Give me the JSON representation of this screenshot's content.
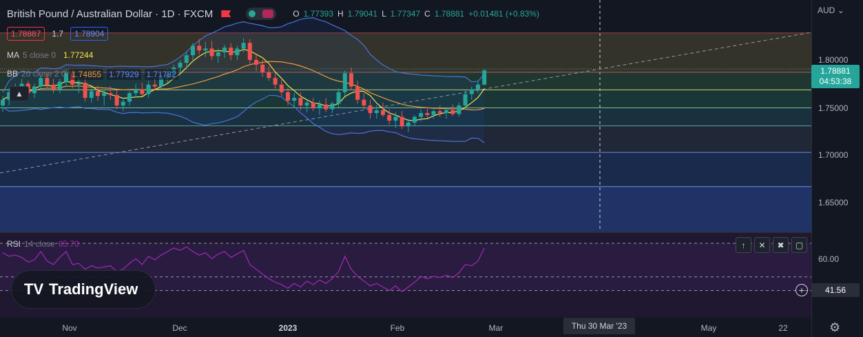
{
  "header": {
    "title": "British Pound / Australian Dollar · 1D · FXCM",
    "ohlc": {
      "o_label": "O",
      "o": "1.77393",
      "h_label": "H",
      "h": "1.79041",
      "l_label": "L",
      "l": "1.77347",
      "c_label": "C",
      "c": "1.78881",
      "change": "+0.01481 (+0.83%)"
    }
  },
  "trade": {
    "sell": "1.78887",
    "spread": "1.7",
    "buy": "1.78904"
  },
  "indicators": {
    "ma": {
      "name": "MA",
      "params": "5 close 0",
      "value": "1.77244"
    },
    "bb": {
      "name": "BB",
      "params": "20 close 2 0",
      "basis": "1.74855",
      "upper": "1.77929",
      "lower": "1.71782"
    },
    "rsi": {
      "name": "RSI",
      "params": "14 close",
      "value": "65.70"
    }
  },
  "price_axis": {
    "currency": "AUD",
    "ticks": [
      "1.80000",
      "1.75000",
      "1.70000",
      "1.65000"
    ],
    "last_price": "1.78881",
    "countdown": "04:53:38",
    "rsi_ticks": [
      "60.00"
    ],
    "rsi_marker": "41.56"
  },
  "time_axis": {
    "ticks": [
      "Nov",
      "Dec",
      "2023",
      "Feb",
      "Mar",
      "May",
      "22"
    ],
    "crosshair_label": "Thu 30 Mar '23"
  },
  "logo": {
    "text": "TradingView",
    "mark": "TV"
  },
  "colors": {
    "up": "#26a69a",
    "down": "#ef5350",
    "ma": "#f5e54a",
    "bb_basis": "#f29b38",
    "bb_band": "#4b74d8",
    "rsi": "#9c27b0"
  },
  "chart_data": {
    "type": "line",
    "title": "",
    "symbol": "GBPAUD",
    "interval": "1D",
    "ylim": [
      1.61,
      1.83
    ],
    "fib_levels": [
      1.8285,
      1.787,
      1.7685,
      1.7495,
      1.7305,
      1.7025,
      1.6665
    ],
    "candles": [
      [
        1.752,
        1.762,
        1.745,
        1.758
      ],
      [
        1.758,
        1.77,
        1.752,
        1.766
      ],
      [
        1.766,
        1.775,
        1.76,
        1.771
      ],
      [
        1.771,
        1.78,
        1.765,
        1.775
      ],
      [
        1.775,
        1.778,
        1.762,
        1.765
      ],
      [
        1.765,
        1.775,
        1.76,
        1.772
      ],
      [
        1.772,
        1.785,
        1.768,
        1.781
      ],
      [
        1.781,
        1.786,
        1.77,
        1.774
      ],
      [
        1.774,
        1.78,
        1.765,
        1.769
      ],
      [
        1.769,
        1.78,
        1.765,
        1.777
      ],
      [
        1.777,
        1.79,
        1.772,
        1.786
      ],
      [
        1.786,
        1.79,
        1.77,
        1.774
      ],
      [
        1.774,
        1.781,
        1.765,
        1.776
      ],
      [
        1.776,
        1.782,
        1.756,
        1.76
      ],
      [
        1.76,
        1.77,
        1.755,
        1.767
      ],
      [
        1.767,
        1.773,
        1.757,
        1.762
      ],
      [
        1.762,
        1.768,
        1.752,
        1.765
      ],
      [
        1.765,
        1.772,
        1.758,
        1.763
      ],
      [
        1.763,
        1.768,
        1.748,
        1.752
      ],
      [
        1.752,
        1.76,
        1.746,
        1.756
      ],
      [
        1.756,
        1.767,
        1.752,
        1.765
      ],
      [
        1.765,
        1.775,
        1.76,
        1.769
      ],
      [
        1.769,
        1.776,
        1.762,
        1.764
      ],
      [
        1.764,
        1.778,
        1.76,
        1.774
      ],
      [
        1.774,
        1.781,
        1.768,
        1.772
      ],
      [
        1.772,
        1.784,
        1.768,
        1.781
      ],
      [
        1.781,
        1.79,
        1.776,
        1.785
      ],
      [
        1.785,
        1.795,
        1.78,
        1.792
      ],
      [
        1.792,
        1.8,
        1.786,
        1.797
      ],
      [
        1.797,
        1.808,
        1.79,
        1.805
      ],
      [
        1.805,
        1.818,
        1.8,
        1.815
      ],
      [
        1.815,
        1.822,
        1.806,
        1.81
      ],
      [
        1.81,
        1.819,
        1.803,
        1.812
      ],
      [
        1.812,
        1.82,
        1.8,
        1.804
      ],
      [
        1.804,
        1.812,
        1.797,
        1.808
      ],
      [
        1.808,
        1.816,
        1.802,
        1.813
      ],
      [
        1.813,
        1.818,
        1.8,
        1.805
      ],
      [
        1.805,
        1.815,
        1.8,
        1.812
      ],
      [
        1.812,
        1.823,
        1.808,
        1.818
      ],
      [
        1.818,
        1.822,
        1.796,
        1.8
      ],
      [
        1.8,
        1.806,
        1.788,
        1.795
      ],
      [
        1.795,
        1.8,
        1.782,
        1.787
      ],
      [
        1.787,
        1.793,
        1.778,
        1.781
      ],
      [
        1.781,
        1.787,
        1.77,
        1.774
      ],
      [
        1.774,
        1.779,
        1.762,
        1.766
      ],
      [
        1.766,
        1.771,
        1.752,
        1.757
      ],
      [
        1.757,
        1.765,
        1.75,
        1.76
      ],
      [
        1.76,
        1.766,
        1.747,
        1.752
      ],
      [
        1.752,
        1.758,
        1.745,
        1.755
      ],
      [
        1.755,
        1.76,
        1.746,
        1.749
      ],
      [
        1.749,
        1.757,
        1.742,
        1.753
      ],
      [
        1.753,
        1.76,
        1.745,
        1.748
      ],
      [
        1.748,
        1.756,
        1.744,
        1.754
      ],
      [
        1.754,
        1.77,
        1.75,
        1.766
      ],
      [
        1.766,
        1.789,
        1.762,
        1.786
      ],
      [
        1.786,
        1.792,
        1.768,
        1.772
      ],
      [
        1.772,
        1.778,
        1.754,
        1.758
      ],
      [
        1.758,
        1.765,
        1.748,
        1.752
      ],
      [
        1.752,
        1.758,
        1.738,
        1.744
      ],
      [
        1.744,
        1.752,
        1.738,
        1.747
      ],
      [
        1.747,
        1.755,
        1.74,
        1.742
      ],
      [
        1.742,
        1.748,
        1.732,
        1.736
      ],
      [
        1.736,
        1.745,
        1.728,
        1.74
      ],
      [
        1.74,
        1.746,
        1.727,
        1.73
      ],
      [
        1.73,
        1.738,
        1.724,
        1.734
      ],
      [
        1.734,
        1.742,
        1.73,
        1.74
      ],
      [
        1.74,
        1.748,
        1.735,
        1.744
      ],
      [
        1.744,
        1.75,
        1.738,
        1.742
      ],
      [
        1.742,
        1.749,
        1.738,
        1.746
      ],
      [
        1.746,
        1.752,
        1.74,
        1.744
      ],
      [
        1.744,
        1.75,
        1.738,
        1.747
      ],
      [
        1.747,
        1.753,
        1.741,
        1.743
      ],
      [
        1.743,
        1.755,
        1.74,
        1.752
      ],
      [
        1.752,
        1.768,
        1.748,
        1.764
      ],
      [
        1.764,
        1.772,
        1.758,
        1.769
      ],
      [
        1.769,
        1.778,
        1.765,
        1.774
      ],
      [
        1.774,
        1.79,
        1.773,
        1.789
      ]
    ],
    "rsi_values": [
      62,
      59,
      60,
      58,
      54,
      56,
      63,
      55,
      52,
      58,
      63,
      52,
      53,
      48,
      51,
      49,
      50,
      51,
      46,
      48,
      53,
      57,
      52,
      59,
      56,
      60,
      63,
      66,
      64,
      67,
      63,
      60,
      62,
      57,
      61,
      63,
      58,
      61,
      64,
      52,
      48,
      44,
      40,
      37,
      35,
      32,
      36,
      33,
      38,
      35,
      39,
      36,
      40,
      46,
      59,
      48,
      42,
      38,
      34,
      36,
      33,
      30,
      34,
      29,
      33,
      37,
      42,
      40,
      42,
      41,
      43,
      41,
      45,
      52,
      51,
      55,
      66
    ],
    "rsi_levels": [
      70,
      41.56,
      30
    ]
  }
}
